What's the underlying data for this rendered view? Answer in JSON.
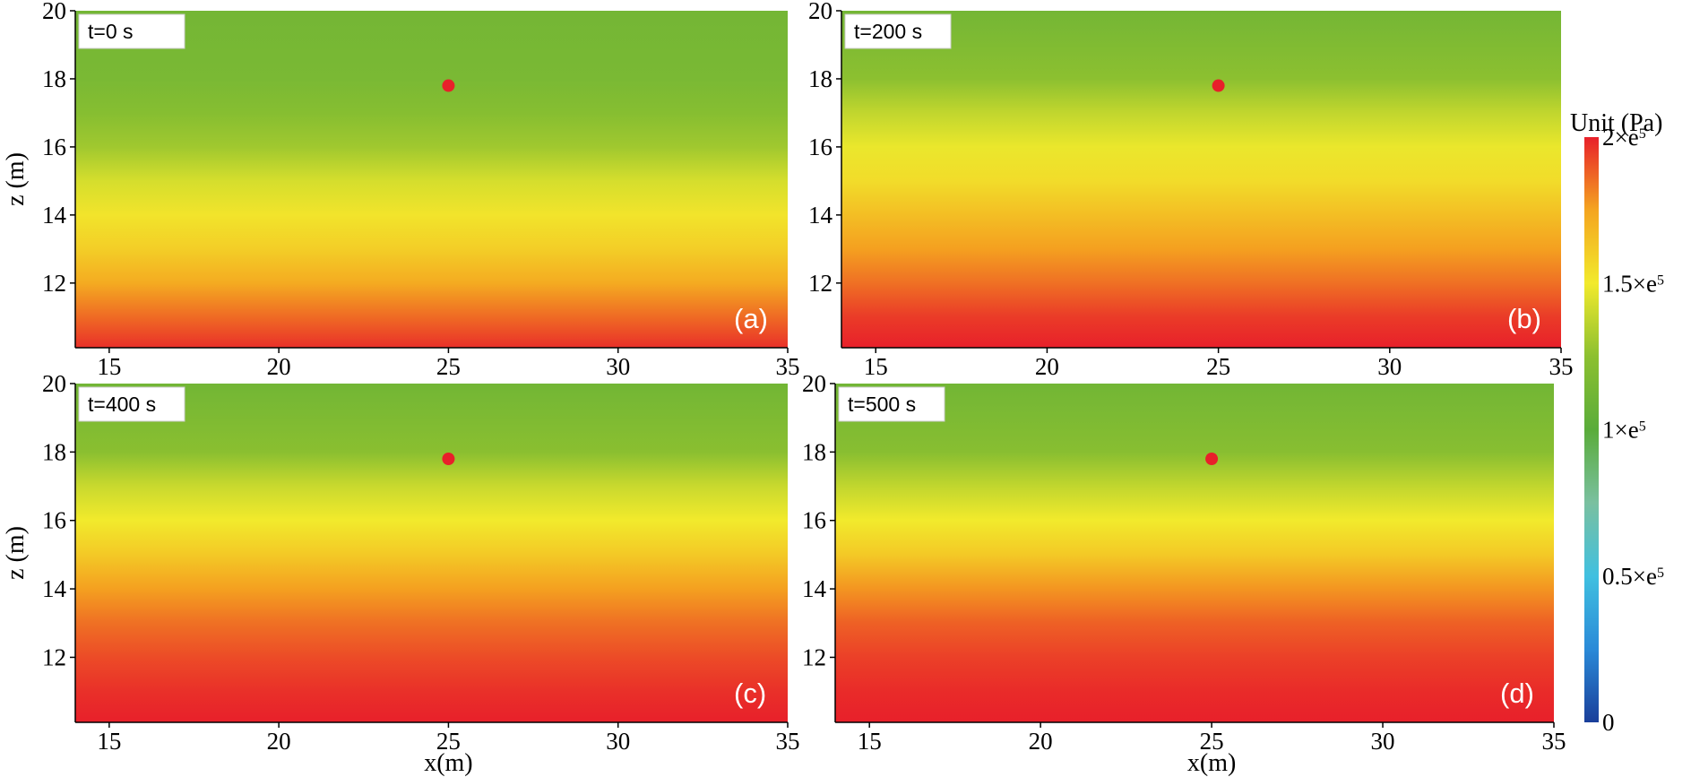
{
  "chart_data": [
    {
      "type": "heatmap",
      "panel_label": "(a)",
      "time_label": "t=0 s",
      "xlabel": "",
      "ylabel": "z (m)",
      "xlim": [
        14,
        35
      ],
      "ylim": [
        10.1,
        20
      ],
      "xticks": [
        15,
        20,
        25,
        30,
        35
      ],
      "yticks": [
        12,
        14,
        16,
        18,
        20
      ],
      "marker_point": {
        "x": 25,
        "z": 17.8,
        "color": "#e8202a"
      },
      "pressure_profile": {
        "z": [
          10.1,
          11,
          12,
          13,
          14,
          15,
          16,
          17,
          18,
          20
        ],
        "value": [
          1.97,
          1.86,
          1.73,
          1.6,
          1.52,
          1.43,
          1.3,
          1.22,
          1.16,
          1.13
        ]
      }
    },
    {
      "type": "heatmap",
      "panel_label": "(b)",
      "time_label": "t=200 s",
      "xlabel": "",
      "ylabel": "",
      "xlim": [
        14,
        35
      ],
      "ylim": [
        10.1,
        20
      ],
      "xticks": [
        15,
        20,
        25,
        30,
        35
      ],
      "yticks": [
        12,
        14,
        16,
        18,
        20
      ],
      "marker_point": {
        "x": 25,
        "z": 17.8,
        "color": "#e8202a"
      },
      "pressure_profile": {
        "z": [
          10.1,
          11,
          12,
          13,
          14,
          15,
          16,
          17,
          18,
          20
        ],
        "value": [
          2.0,
          1.95,
          1.85,
          1.76,
          1.66,
          1.55,
          1.48,
          1.38,
          1.25,
          1.13
        ]
      }
    },
    {
      "type": "heatmap",
      "panel_label": "(c)",
      "time_label": "t=400 s",
      "xlabel": "x(m)",
      "ylabel": "z (m)",
      "xlim": [
        14,
        35
      ],
      "ylim": [
        10.1,
        20
      ],
      "xticks": [
        15,
        20,
        25,
        30,
        35
      ],
      "yticks": [
        12,
        14,
        16,
        18,
        20
      ],
      "marker_point": {
        "x": 25,
        "z": 17.8,
        "color": "#e8202a"
      },
      "pressure_profile": {
        "z": [
          10.1,
          11,
          12,
          13,
          14,
          15,
          16,
          17,
          18,
          20
        ],
        "value": [
          2.0,
          1.97,
          1.92,
          1.85,
          1.76,
          1.62,
          1.5,
          1.4,
          1.24,
          1.12
        ]
      }
    },
    {
      "type": "heatmap",
      "panel_label": "(d)",
      "time_label": "t=500 s",
      "xlabel": "x(m)",
      "ylabel": "",
      "xlim": [
        14,
        35
      ],
      "ylim": [
        10.1,
        20
      ],
      "xticks": [
        15,
        20,
        25,
        30,
        35
      ],
      "yticks": [
        12,
        14,
        16,
        18,
        20
      ],
      "marker_point": {
        "x": 25,
        "z": 17.8,
        "color": "#e8202a"
      },
      "pressure_profile": {
        "z": [
          10.1,
          11,
          12,
          13,
          14,
          15,
          16,
          17,
          18,
          20
        ],
        "value": [
          2.0,
          1.98,
          1.94,
          1.88,
          1.78,
          1.62,
          1.5,
          1.38,
          1.23,
          1.12
        ]
      }
    }
  ],
  "colorbar": {
    "title": "Unit (Pa)",
    "min": 0,
    "max": 2,
    "ticks": [
      {
        "value": 2,
        "label": "2×e5"
      },
      {
        "value": 1.5,
        "label": "1.5×e5"
      },
      {
        "value": 1,
        "label": "1×e5"
      },
      {
        "value": 0.5,
        "label": "0.5×e5"
      },
      {
        "value": 0,
        "label": "0"
      }
    ],
    "stops": [
      {
        "value": 0.0,
        "color": "#1a3f9a"
      },
      {
        "value": 0.25,
        "color": "#2a8ad8"
      },
      {
        "value": 0.5,
        "color": "#40c0e0"
      },
      {
        "value": 0.75,
        "color": "#7ac0a0"
      },
      {
        "value": 1.0,
        "color": "#5aac3a"
      },
      {
        "value": 1.25,
        "color": "#8cc030"
      },
      {
        "value": 1.5,
        "color": "#f2ea2c"
      },
      {
        "value": 1.75,
        "color": "#f4a520"
      },
      {
        "value": 2.0,
        "color": "#e8202a"
      }
    ]
  }
}
